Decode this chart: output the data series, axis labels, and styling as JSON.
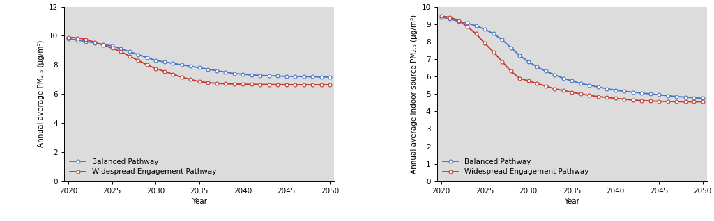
{
  "years": [
    2020,
    2021,
    2022,
    2023,
    2024,
    2025,
    2026,
    2027,
    2028,
    2029,
    2030,
    2031,
    2032,
    2033,
    2034,
    2035,
    2036,
    2037,
    2038,
    2039,
    2040,
    2041,
    2042,
    2043,
    2044,
    2045,
    2046,
    2047,
    2048,
    2049,
    2050
  ],
  "left_balanced": [
    9.8,
    9.7,
    9.6,
    9.5,
    9.4,
    9.3,
    9.1,
    8.9,
    8.7,
    8.5,
    8.3,
    8.2,
    8.1,
    8.0,
    7.9,
    7.8,
    7.7,
    7.6,
    7.5,
    7.4,
    7.35,
    7.3,
    7.27,
    7.25,
    7.23,
    7.21,
    7.2,
    7.19,
    7.18,
    7.17,
    7.16
  ],
  "left_widespread": [
    9.9,
    9.85,
    9.75,
    9.55,
    9.35,
    9.15,
    8.9,
    8.6,
    8.3,
    8.0,
    7.75,
    7.55,
    7.35,
    7.15,
    7.0,
    6.85,
    6.78,
    6.73,
    6.7,
    6.68,
    6.67,
    6.66,
    6.65,
    6.65,
    6.64,
    6.64,
    6.63,
    6.63,
    6.63,
    6.63,
    6.63
  ],
  "right_balanced": [
    9.4,
    9.3,
    9.15,
    9.05,
    8.9,
    8.7,
    8.45,
    8.1,
    7.65,
    7.2,
    6.85,
    6.55,
    6.3,
    6.1,
    5.9,
    5.75,
    5.6,
    5.5,
    5.4,
    5.3,
    5.22,
    5.15,
    5.1,
    5.05,
    5.0,
    4.95,
    4.9,
    4.85,
    4.82,
    4.78,
    4.75
  ],
  "right_widespread": [
    9.45,
    9.4,
    9.2,
    8.85,
    8.45,
    7.9,
    7.4,
    6.85,
    6.3,
    5.9,
    5.75,
    5.6,
    5.45,
    5.3,
    5.2,
    5.1,
    5.0,
    4.92,
    4.85,
    4.8,
    4.75,
    4.7,
    4.65,
    4.62,
    4.6,
    4.58,
    4.57,
    4.56,
    4.55,
    4.55,
    4.55
  ],
  "blue_color": "#4472C4",
  "red_color": "#C0392B",
  "bg_color": "#DCDCDC",
  "white": "#FFFFFF",
  "legend_label_balanced": "Balanced Pathway",
  "legend_label_widespread": "Widespread Engagement Pathway",
  "left_ylabel": "Annual average PM₂.₅ (μg/m³)",
  "right_ylabel": "Annual average indoor source PM₂.₅ (μg/m³)",
  "xlabel": "Year",
  "left_ylim": [
    0,
    12
  ],
  "right_ylim": [
    0,
    10
  ],
  "left_yticks": [
    0,
    2,
    4,
    6,
    8,
    10,
    12
  ],
  "right_yticks": [
    0,
    1,
    2,
    3,
    4,
    5,
    6,
    7,
    8,
    9,
    10
  ],
  "xlim": [
    2019.5,
    2050.5
  ],
  "xticks": [
    2020,
    2025,
    2030,
    2035,
    2040,
    2045,
    2050
  ],
  "marker": "o",
  "marker_size": 3.5,
  "linewidth": 1.3,
  "tick_fontsize": 7.5,
  "label_fontsize": 7.5,
  "legend_fontsize": 7.5
}
